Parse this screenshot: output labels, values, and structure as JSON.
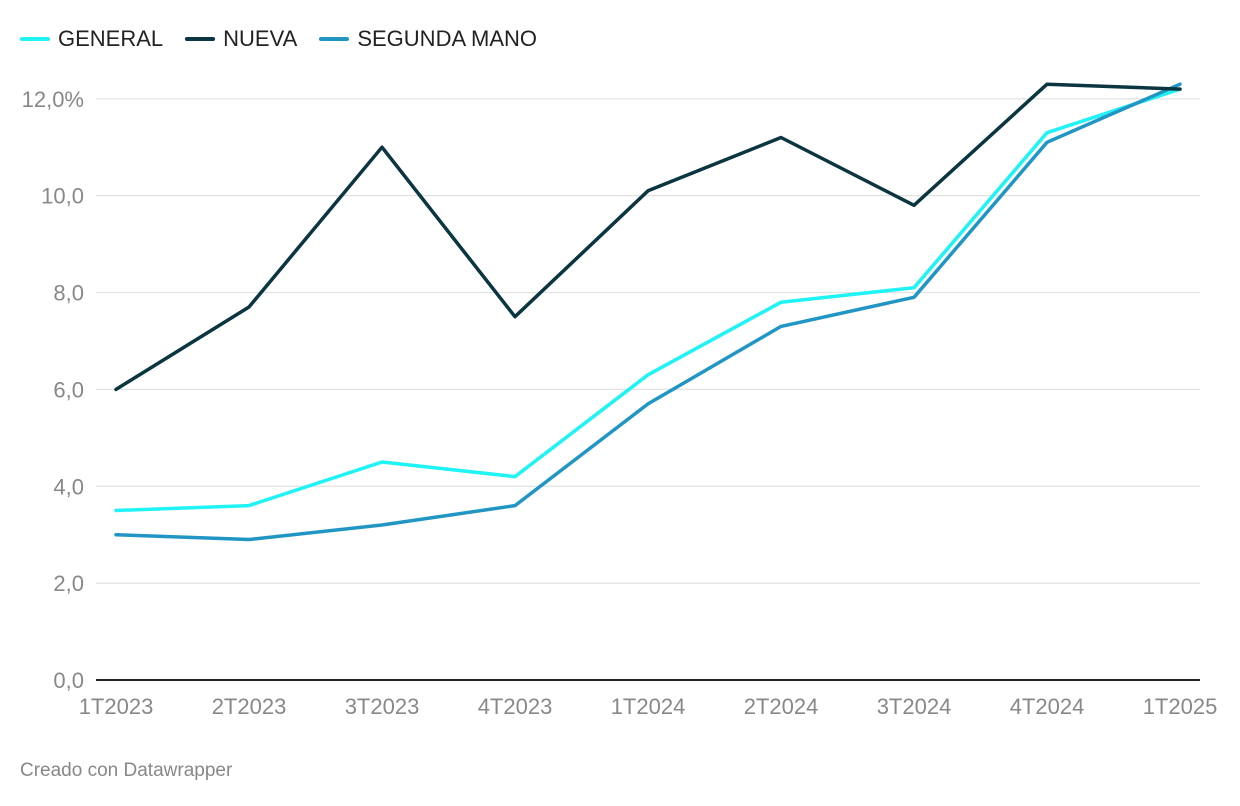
{
  "chart_data": {
    "type": "line",
    "categories": [
      "1T2023",
      "2T2023",
      "3T2023",
      "4T2023",
      "1T2024",
      "2T2024",
      "3T2024",
      "4T2024",
      "1T2025"
    ],
    "series": [
      {
        "name": "GENERAL",
        "color": "#1ff3f5",
        "values": [
          3.5,
          3.6,
          4.5,
          4.2,
          6.3,
          7.8,
          8.1,
          11.3,
          12.2
        ]
      },
      {
        "name": "NUEVA",
        "color": "#0b3540",
        "values": [
          6.0,
          7.7,
          11.0,
          7.5,
          10.1,
          11.2,
          9.8,
          12.3,
          12.2
        ]
      },
      {
        "name": "SEGUNDA MANO",
        "color": "#2196c4",
        "values": [
          3.0,
          2.9,
          3.2,
          3.6,
          5.7,
          7.3,
          7.9,
          11.1,
          12.3
        ]
      }
    ],
    "y_ticks": [
      "0,0",
      "2,0",
      "4,0",
      "6,0",
      "8,0",
      "10,0",
      "12,0%"
    ],
    "y_tick_values": [
      0,
      2,
      4,
      6,
      8,
      10,
      12
    ],
    "ylim": [
      0,
      12.8
    ],
    "grid": true,
    "legend_position": "top-left"
  },
  "footer": {
    "credit": "Creado con Datawrapper"
  }
}
